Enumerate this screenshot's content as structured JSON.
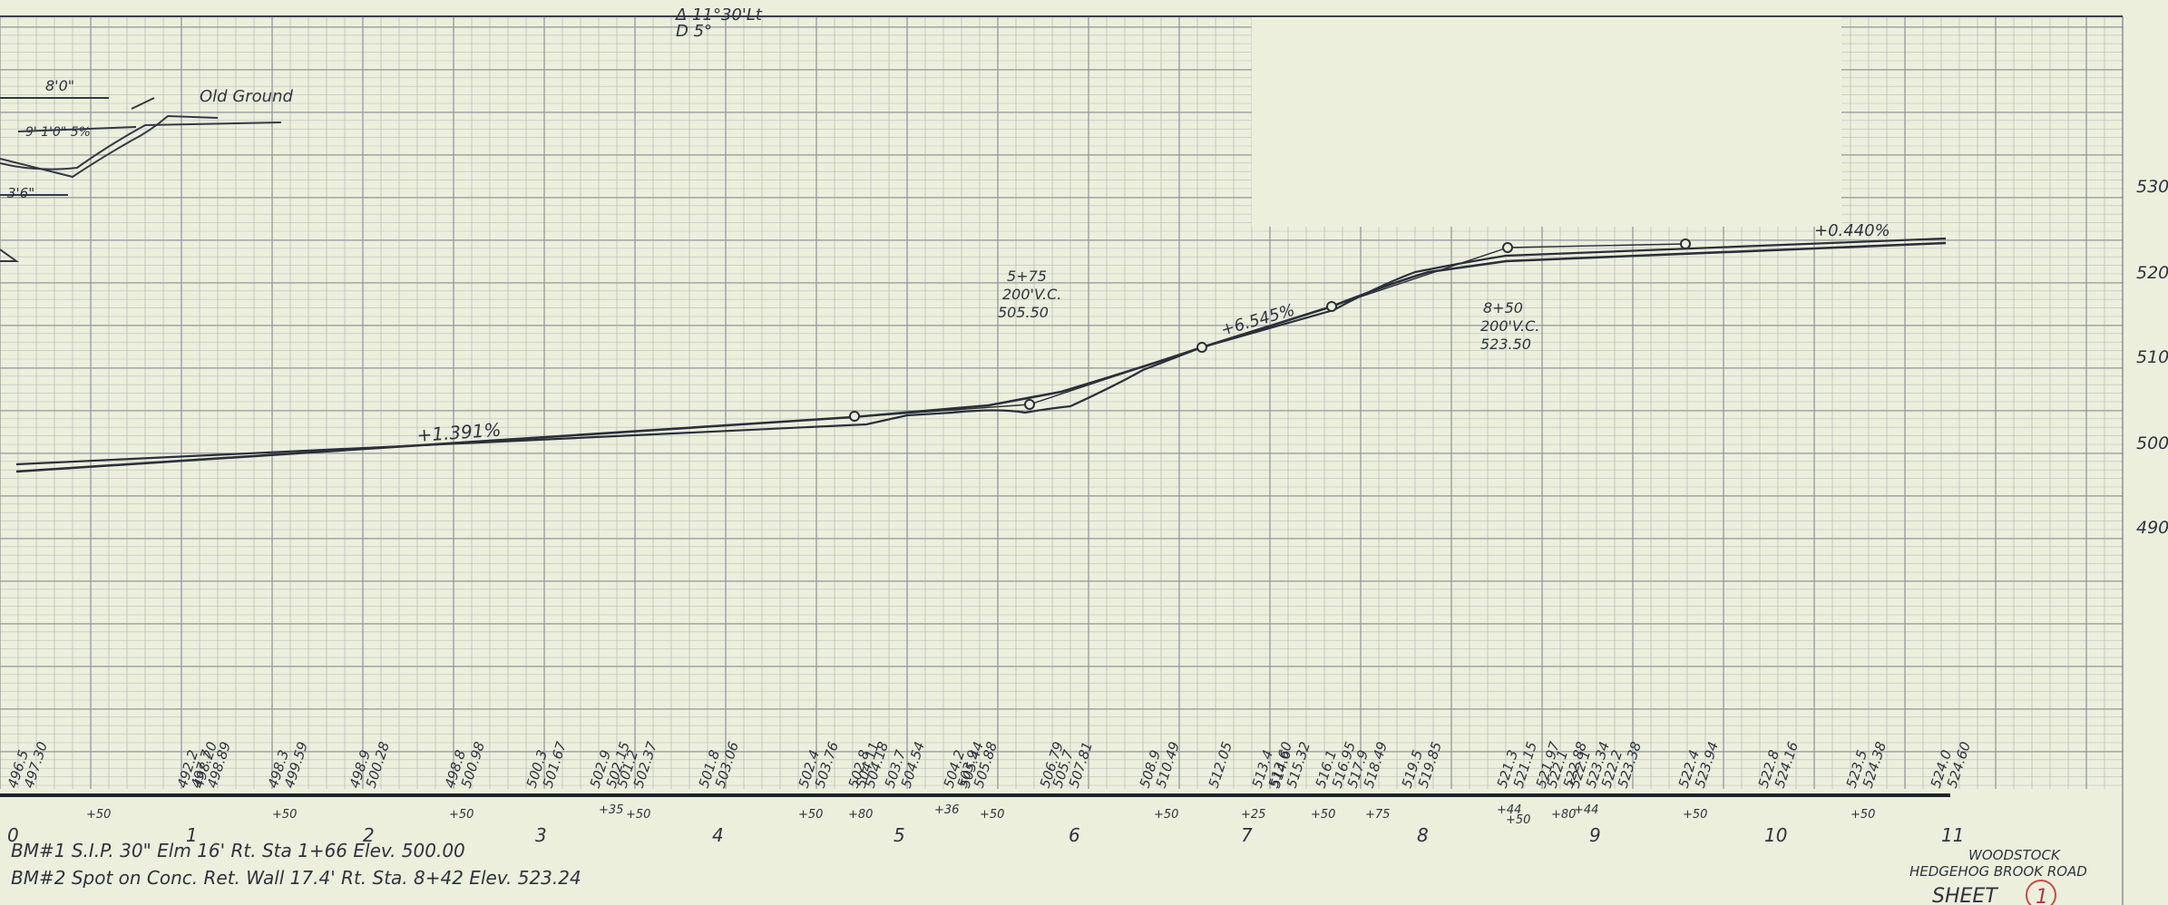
{
  "curve_top": {
    "delta": "Δ 11°30'Lt",
    "degree": "D 5°"
  },
  "section": {
    "width_top": "8'0\"",
    "old_ground": "Old Ground",
    "dims": "9'  1'0\"  5%",
    "width_bottom": "3'6\""
  },
  "right_elev_labels": [
    "530",
    "520",
    "510",
    "500",
    "490"
  ],
  "grades": [
    "+1.391%",
    "+6.545%",
    "+0.440%"
  ],
  "vertical_curves": [
    {
      "lines": [
        "5+75",
        "200'V.C.",
        "505.50"
      ]
    },
    {
      "lines": [
        "8+50",
        "200'V.C.",
        "523.50"
      ]
    }
  ],
  "elevation_pairs": [
    {
      "t": "496.5",
      "b": "497.30"
    },
    {
      "t": "492.2",
      "b": "498.20"
    },
    {
      "t": "497.7",
      "b": "498.89"
    },
    {
      "t": "498.3",
      "b": "499.59"
    },
    {
      "t": "498.9",
      "b": "500.28"
    },
    {
      "t": "498.8",
      "b": "500.98"
    },
    {
      "t": "500.3",
      "b": "501.67"
    },
    {
      "t": "502.9",
      "b": "502.15"
    },
    {
      "t": "501.2",
      "b": "502.37"
    },
    {
      "t": "501.8",
      "b": "503.06"
    },
    {
      "t": "502.4",
      "b": "503.76"
    },
    {
      "t": "",
      "b": "504.11"
    },
    {
      "t": "502.8",
      "b": "504.18"
    },
    {
      "t": "503.7",
      "b": "504.54"
    },
    {
      "t": "504.2",
      "b": "505.44"
    },
    {
      "t": "503.9",
      "b": "505.88"
    },
    {
      "t": "",
      "b": "506.79"
    },
    {
      "t": "505.7",
      "b": "507.81"
    },
    {
      "t": "508.9",
      "b": "510.49"
    },
    {
      "t": "",
      "b": "512.05"
    },
    {
      "t": "513.4",
      "b": "513.60"
    },
    {
      "t": "514.6",
      "b": "515.32"
    },
    {
      "t": "516.1",
      "b": "516.95"
    },
    {
      "t": "517.9",
      "b": "518.49"
    },
    {
      "t": "519.5",
      "b": "519.85"
    },
    {
      "t": "521.3",
      "b": "521.15"
    },
    {
      "t": "",
      "b": "521.97"
    },
    {
      "t": "522.1",
      "b": "522.88"
    },
    {
      "t": "522.1",
      "b": "523.34"
    },
    {
      "t": "522.2",
      "b": "523.38"
    },
    {
      "t": "522.4",
      "b": "523.94"
    },
    {
      "t": "522.8",
      "b": "524.16"
    },
    {
      "t": "523.5",
      "b": "524.38"
    },
    {
      "t": "524.0",
      "b": "524.60"
    }
  ],
  "station_numbers": [
    "0",
    "1",
    "2",
    "3",
    "4",
    "5",
    "6",
    "7",
    "8",
    "9",
    "10",
    "11"
  ],
  "plus_labels": [
    "+50",
    "+50",
    "+50",
    "+35",
    "+50",
    "+50",
    "+80",
    "+36",
    "+50",
    "+50",
    "+25",
    "+50",
    "+75",
    "+44",
    "+50",
    "+80",
    "+44",
    "+50",
    "+50"
  ],
  "benchmarks": [
    "BM#1 S.I.P. 30\" Elm 16' Rt. Sta 1+66 Elev. 500.00",
    "BM#2 Spot on Conc. Ret. Wall 17.4' Rt. Sta. 8+42 Elev. 523.24"
  ],
  "title_block": {
    "line1": "WOODSTOCK",
    "line2": "HEDGEHOG BROOK ROAD",
    "sheet_label": "SHEET",
    "sheet_number": "1"
  }
}
